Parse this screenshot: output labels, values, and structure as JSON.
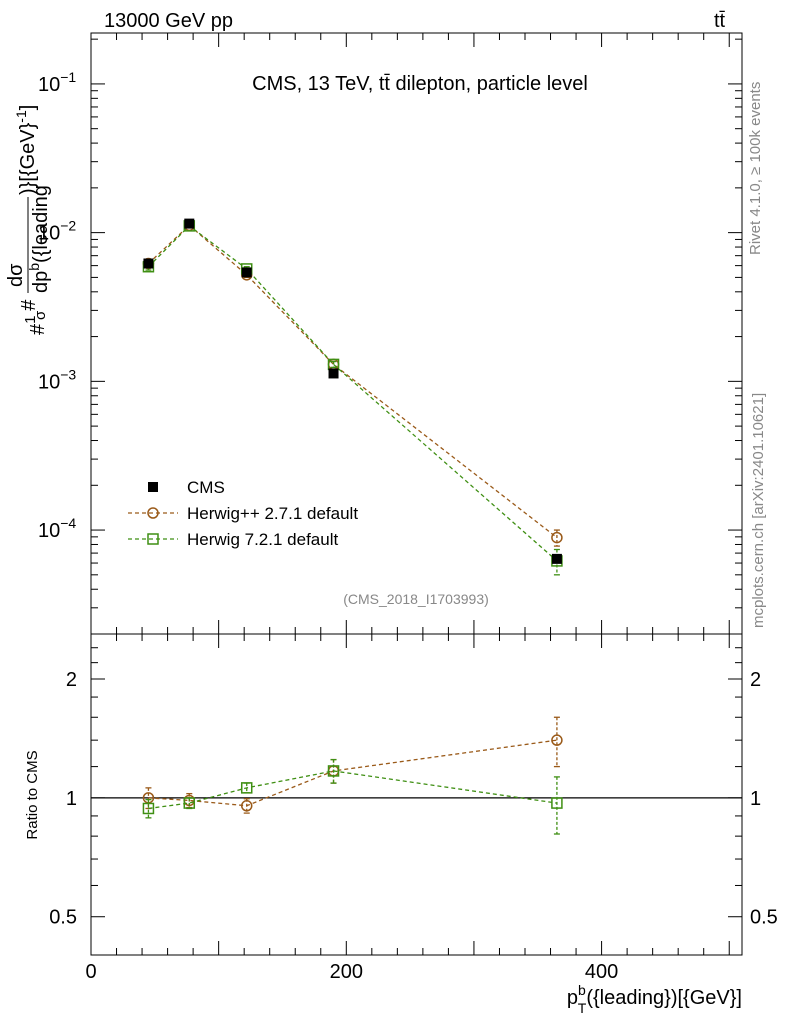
{
  "header": {
    "left": "13000 GeV pp",
    "right": "tt̄"
  },
  "chart_data": [
    {
      "type": "line",
      "title": "CMS, 13 TeV, tt̄ dilepton, particle level",
      "xlabel": "p_T^b({leading})[{GeV}]",
      "ylabel": "#1/σ# dσ/dp_T^b({leading})[{GeV}^-1]",
      "yscale": "log",
      "xlim": [
        0,
        510
      ],
      "ylim": [
        2e-05,
        0.22
      ],
      "yticks": [
        {
          "value": 0.1,
          "base": "10",
          "exp": "−1"
        },
        {
          "value": 0.01,
          "base": "10",
          "exp": "−2"
        },
        {
          "value": 0.001,
          "base": "10",
          "exp": "−3"
        },
        {
          "value": 0.0001,
          "base": "10",
          "exp": "−4"
        }
      ],
      "series": [
        {
          "name": "CMS",
          "color": "#000000",
          "marker": "filled-square",
          "line": "none",
          "x": [
            45,
            77,
            122,
            190,
            365
          ],
          "y": [
            0.0062,
            0.0115,
            0.0054,
            0.00113,
            6.4e-05
          ]
        },
        {
          "name": "Herwig++ 2.7.1 default",
          "color": "#9a5a19",
          "marker": "open-circle",
          "line": "dashed",
          "x": [
            45,
            77,
            122,
            190,
            365
          ],
          "y": [
            0.0062,
            0.0112,
            0.0052,
            0.0013,
            8.9e-05
          ],
          "err": [
            0.0004,
            0.0003,
            0.0002,
            6e-05,
            1.1e-05
          ]
        },
        {
          "name": "Herwig 7.2.1 default",
          "color": "#3f8f13",
          "marker": "open-square",
          "line": "dashed",
          "x": [
            45,
            77,
            122,
            190,
            365
          ],
          "y": [
            0.0059,
            0.0111,
            0.0057,
            0.0013,
            6.2e-05
          ],
          "err": [
            0.0003,
            0.0003,
            0.0002,
            6e-05,
            1.2e-05
          ]
        }
      ],
      "annotation": "(CMS_2018_I1703993)",
      "side_labels": [
        "Rivet 4.1.0, ≥ 100k events",
        "mcplots.cern.ch [arXiv:2401.10621]"
      ]
    },
    {
      "type": "line",
      "ylabel": "Ratio to CMS",
      "xlabel": "p_T^b({leading})[{GeV}]",
      "yscale": "log",
      "xlim": [
        0,
        510
      ],
      "ylim": [
        0.4,
        2.6
      ],
      "yticks": [
        {
          "value": 2,
          "label": "2"
        },
        {
          "value": 1,
          "label": "1"
        },
        {
          "value": 0.5,
          "label": "0.5"
        }
      ],
      "xticks": [
        {
          "value": 0,
          "label": "0"
        },
        {
          "value": 200,
          "label": "200"
        },
        {
          "value": 400,
          "label": "400"
        }
      ],
      "reference_line": 1,
      "series": [
        {
          "name": "Herwig++ 2.7.1 default",
          "color": "#9a5a19",
          "marker": "open-circle",
          "x": [
            45,
            77,
            122,
            190,
            365
          ],
          "y": [
            1.0,
            0.985,
            0.955,
            1.17,
            1.4
          ],
          "err": [
            0.06,
            0.04,
            0.04,
            0.08,
            0.2
          ]
        },
        {
          "name": "Herwig 7.2.1 default",
          "color": "#3f8f13",
          "marker": "open-square",
          "x": [
            45,
            77,
            122,
            190,
            365
          ],
          "y": [
            0.94,
            0.97,
            1.06,
            1.17,
            0.97
          ],
          "err": [
            0.05,
            0.03,
            0.03,
            0.08,
            0.16
          ]
        }
      ]
    }
  ]
}
